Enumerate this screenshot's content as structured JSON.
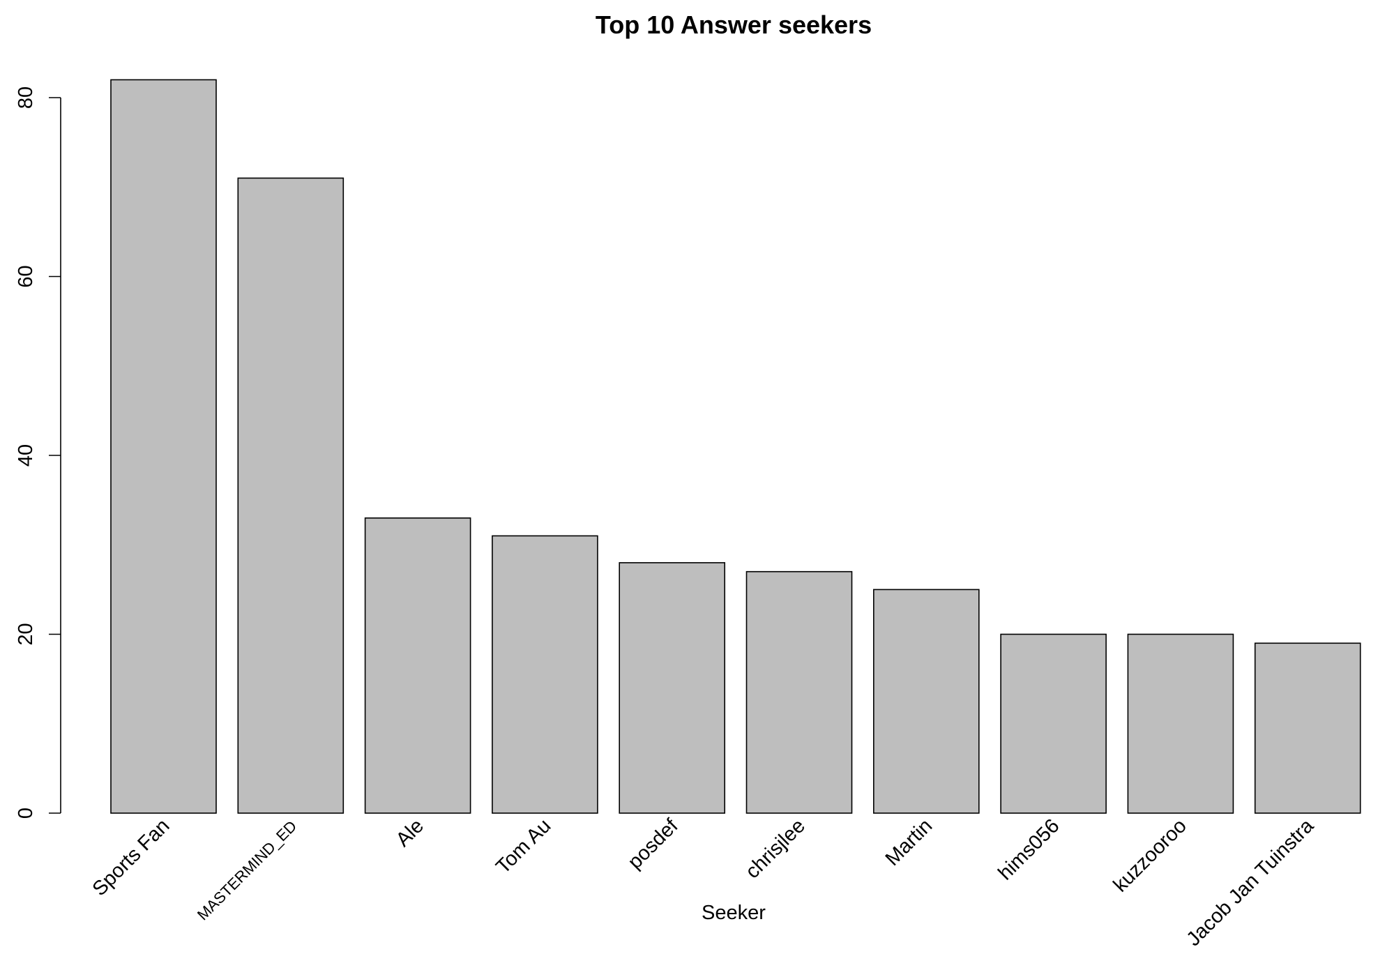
{
  "chart_data": {
    "type": "bar",
    "title": "Top 10 Answer seekers",
    "xlabel": "Seeker",
    "ylabel": "",
    "categories": [
      "Sports Fan",
      "MASTERMIND_ED",
      "Ale",
      "Tom Au",
      "posdef",
      "chrisjlee",
      "Martin",
      "hims056",
      "kuzzooroo",
      "Jacob Jan Tuinstra"
    ],
    "values": [
      82,
      71,
      33,
      31,
      28,
      27,
      25,
      20,
      20,
      19
    ],
    "ylim": [
      0,
      80
    ],
    "yticks": [
      0,
      20,
      40,
      60,
      80
    ],
    "grid": false,
    "legend": "none",
    "bar_color": "#bebebe",
    "border_color": "#000000"
  }
}
